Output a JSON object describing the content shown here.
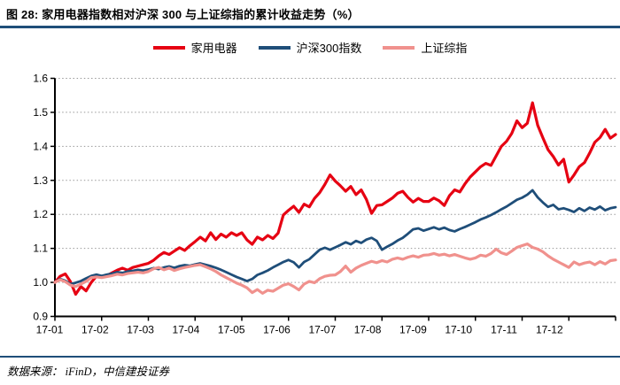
{
  "figure": {
    "title": "图 28:  家用电器指数相对沪深 300 与上证综指的累计收益走势（%）",
    "source_note": "数据来源：  iFinD，中信建投证券"
  },
  "colors": {
    "rule": "#1f4e79",
    "axis": "#000000",
    "grid": "#999999",
    "background": "#ffffff"
  },
  "chart_data": {
    "type": "line",
    "title": "家用电器指数相对沪深300与上证综指的累计收益走势（%）",
    "ylim": [
      0.9,
      1.6
    ],
    "y_ticks": [
      "0.9",
      "1.0",
      "1.1",
      "1.2",
      "1.3",
      "1.4",
      "1.5",
      "1.6"
    ],
    "x_tick_labels": [
      "17-01",
      "17-02",
      "17-03",
      "17-04",
      "17-05",
      "17-06",
      "17-07",
      "17-08",
      "17-09",
      "17-10",
      "17-11",
      "17-12"
    ],
    "grid": "horizontal-dotted",
    "legend_position": "top",
    "series": [
      {
        "name": "家用电器",
        "color": "#e60012",
        "width": 3.2,
        "values": [
          1.0,
          1.018,
          1.025,
          1.002,
          0.965,
          0.988,
          0.975,
          1.0,
          1.018,
          1.015,
          1.02,
          1.028,
          1.036,
          1.042,
          1.036,
          1.044,
          1.048,
          1.052,
          1.056,
          1.065,
          1.078,
          1.088,
          1.082,
          1.092,
          1.102,
          1.094,
          1.108,
          1.12,
          1.133,
          1.122,
          1.146,
          1.126,
          1.142,
          1.133,
          1.146,
          1.138,
          1.146,
          1.125,
          1.112,
          1.133,
          1.125,
          1.138,
          1.129,
          1.145,
          1.198,
          1.212,
          1.224,
          1.206,
          1.23,
          1.222,
          1.247,
          1.264,
          1.288,
          1.316,
          1.298,
          1.284,
          1.268,
          1.282,
          1.258,
          1.272,
          1.244,
          1.203,
          1.226,
          1.228,
          1.238,
          1.248,
          1.262,
          1.268,
          1.25,
          1.236,
          1.247,
          1.238,
          1.238,
          1.248,
          1.24,
          1.226,
          1.255,
          1.272,
          1.266,
          1.29,
          1.31,
          1.325,
          1.34,
          1.35,
          1.344,
          1.372,
          1.4,
          1.415,
          1.438,
          1.475,
          1.455,
          1.468,
          1.528,
          1.462,
          1.425,
          1.39,
          1.37,
          1.345,
          1.362,
          1.295,
          1.316,
          1.34,
          1.352,
          1.38,
          1.412,
          1.426,
          1.45,
          1.424,
          1.435
        ]
      },
      {
        "name": "沪深300指数",
        "color": "#1f4e79",
        "width": 2.8,
        "values": [
          1.0,
          1.01,
          1.005,
          0.995,
          0.999,
          1.004,
          1.012,
          1.019,
          1.023,
          1.019,
          1.023,
          1.026,
          1.03,
          1.028,
          1.032,
          1.034,
          1.037,
          1.035,
          1.038,
          1.042,
          1.039,
          1.044,
          1.047,
          1.043,
          1.048,
          1.051,
          1.049,
          1.053,
          1.056,
          1.052,
          1.048,
          1.043,
          1.037,
          1.03,
          1.023,
          1.016,
          1.01,
          1.004,
          1.01,
          1.022,
          1.028,
          1.035,
          1.044,
          1.052,
          1.06,
          1.066,
          1.059,
          1.044,
          1.06,
          1.068,
          1.082,
          1.096,
          1.102,
          1.096,
          1.103,
          1.11,
          1.118,
          1.112,
          1.122,
          1.116,
          1.126,
          1.131,
          1.122,
          1.096,
          1.105,
          1.113,
          1.123,
          1.131,
          1.143,
          1.156,
          1.159,
          1.152,
          1.157,
          1.162,
          1.156,
          1.161,
          1.154,
          1.15,
          1.157,
          1.163,
          1.17,
          1.177,
          1.185,
          1.191,
          1.198,
          1.206,
          1.215,
          1.223,
          1.233,
          1.243,
          1.249,
          1.258,
          1.271,
          1.25,
          1.235,
          1.222,
          1.228,
          1.215,
          1.218,
          1.213,
          1.207,
          1.218,
          1.21,
          1.22,
          1.214,
          1.223,
          1.212,
          1.218,
          1.221
        ]
      },
      {
        "name": "上证综指",
        "color": "#f0918d",
        "width": 3.2,
        "values": [
          1.0,
          1.008,
          1.002,
          0.992,
          0.988,
          0.995,
          1.003,
          1.014,
          1.016,
          1.014,
          1.017,
          1.02,
          1.024,
          1.022,
          1.026,
          1.028,
          1.03,
          1.028,
          1.032,
          1.04,
          1.044,
          1.037,
          1.042,
          1.035,
          1.04,
          1.044,
          1.047,
          1.05,
          1.052,
          1.046,
          1.04,
          1.032,
          1.022,
          1.014,
          1.006,
          0.998,
          0.992,
          0.984,
          0.97,
          0.979,
          0.968,
          0.977,
          0.974,
          0.983,
          0.992,
          0.996,
          0.988,
          0.978,
          0.995,
          1.003,
          0.999,
          1.011,
          1.018,
          1.021,
          1.022,
          1.032,
          1.048,
          1.03,
          1.042,
          1.05,
          1.056,
          1.062,
          1.058,
          1.064,
          1.06,
          1.068,
          1.072,
          1.068,
          1.074,
          1.078,
          1.074,
          1.08,
          1.081,
          1.085,
          1.08,
          1.083,
          1.078,
          1.082,
          1.077,
          1.072,
          1.068,
          1.072,
          1.08,
          1.077,
          1.085,
          1.098,
          1.087,
          1.082,
          1.092,
          1.103,
          1.108,
          1.113,
          1.103,
          1.098,
          1.09,
          1.078,
          1.068,
          1.06,
          1.052,
          1.044,
          1.06,
          1.052,
          1.057,
          1.06,
          1.052,
          1.061,
          1.054,
          1.064,
          1.066
        ]
      }
    ]
  }
}
